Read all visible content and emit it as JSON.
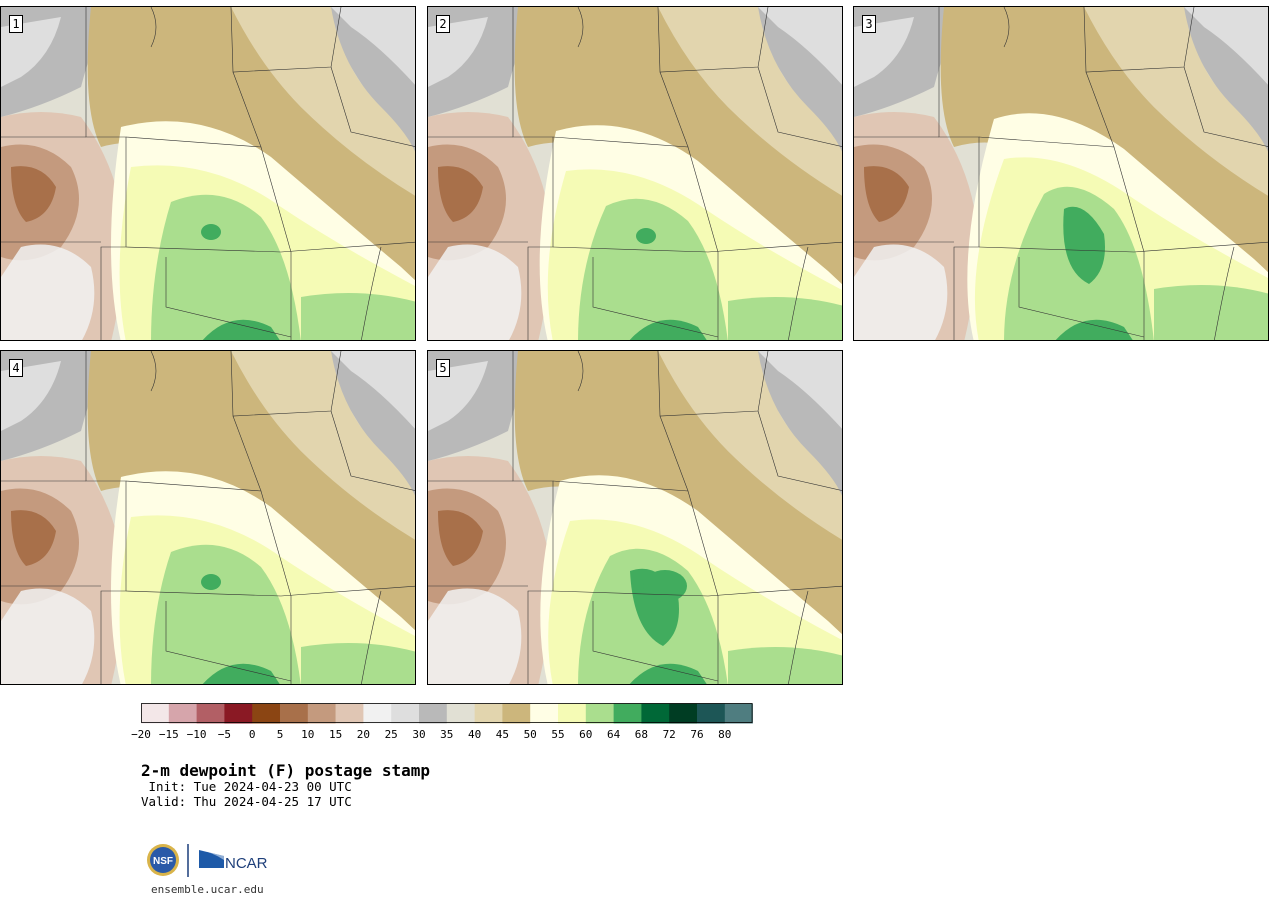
{
  "panels": [
    {
      "label": "1",
      "variant": 0
    },
    {
      "label": "2",
      "variant": 1
    },
    {
      "label": "3",
      "variant": 2
    },
    {
      "label": "4",
      "variant": 3
    },
    {
      "label": "5",
      "variant": 4
    }
  ],
  "colorbar": {
    "colors": [
      "#f3e7e8",
      "#d6a5ab",
      "#b25f65",
      "#8a1924",
      "#8b4513",
      "#a8704a",
      "#c49a7e",
      "#e0c6b4",
      "#f1f1f1",
      "#dedede",
      "#b9b9b9",
      "#e1e0d4",
      "#e2d5ae",
      "#ccb67c",
      "#fffee5",
      "#f5fbb5",
      "#aade8e",
      "#41ac5e",
      "#006837",
      "#003d23",
      "#1d5656",
      "#4f7d80"
    ],
    "tick_labels": [
      "−20",
      "−15",
      "−10",
      "−5",
      "0",
      "5",
      "10",
      "15",
      "20",
      "25",
      "30",
      "35",
      "40",
      "45",
      "50",
      "55",
      "60",
      "64",
      "68",
      "72",
      "76",
      "80"
    ]
  },
  "title": "2-m dewpoint (F) postage stamp",
  "init": " Init: Tue 2024-04-23 00 UTC",
  "valid": "Valid: Thu 2024-04-25 17 UTC",
  "logo": {
    "nsf": "NSF",
    "ncar": "NCAR"
  },
  "site": "ensemble.ucar.edu"
}
